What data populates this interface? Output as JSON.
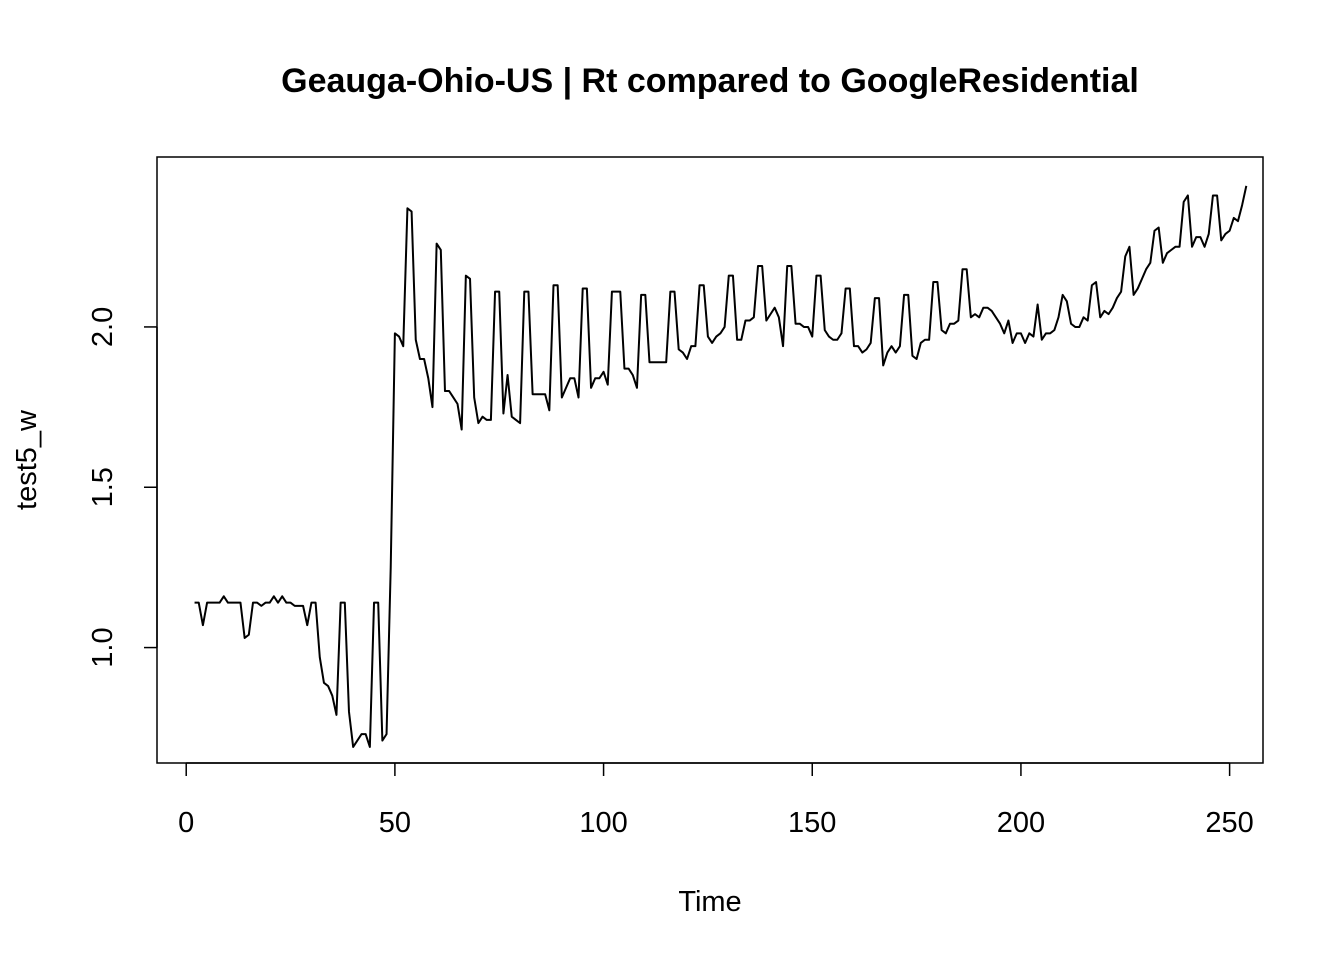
{
  "chart_data": {
    "type": "line",
    "title": "Geauga-Ohio-US | Rt compared to GoogleResidential",
    "xlabel": "Time",
    "ylabel": "test5_w",
    "xlim": [
      -7,
      258
    ],
    "ylim": [
      0.64,
      2.53
    ],
    "x_ticks": [
      0,
      50,
      100,
      150,
      200,
      250
    ],
    "y_ticks": [
      1.0,
      1.5,
      2.0
    ],
    "x_tick_labels": [
      "0",
      "50",
      "100",
      "150",
      "200",
      "250"
    ],
    "y_tick_labels": [
      "1.0",
      "1.5",
      "2.0"
    ],
    "grid": false,
    "legend": "none",
    "line_color": "#000000",
    "series": [
      {
        "x_start": 2,
        "values": [
          1.14,
          1.14,
          1.07,
          1.14,
          1.14,
          1.14,
          1.14,
          1.16,
          1.14,
          1.14,
          1.14,
          1.14,
          1.03,
          1.04,
          1.14,
          1.14,
          1.13,
          1.14,
          1.14,
          1.16,
          1.14,
          1.16,
          1.14,
          1.14,
          1.13,
          1.13,
          1.13,
          1.07,
          1.14,
          1.14,
          0.97,
          0.89,
          0.88,
          0.85,
          0.79,
          1.14,
          1.14,
          0.8,
          0.69,
          0.71,
          0.73,
          0.73,
          0.69,
          1.14,
          1.14,
          0.71,
          0.73,
          1.25,
          1.98,
          1.97,
          1.94,
          2.37,
          2.36,
          1.96,
          1.9,
          1.9,
          1.84,
          1.75,
          2.26,
          2.24,
          1.8,
          1.8,
          1.78,
          1.76,
          1.68,
          2.16,
          2.15,
          1.78,
          1.7,
          1.72,
          1.71,
          1.71,
          2.11,
          2.11,
          1.73,
          1.85,
          1.72,
          1.71,
          1.7,
          2.11,
          2.11,
          1.79,
          1.79,
          1.79,
          1.79,
          1.74,
          2.13,
          2.13,
          1.78,
          1.81,
          1.84,
          1.84,
          1.78,
          2.12,
          2.12,
          1.81,
          1.84,
          1.84,
          1.86,
          1.82,
          2.11,
          2.11,
          2.11,
          1.87,
          1.87,
          1.85,
          1.81,
          2.1,
          2.1,
          1.89,
          1.89,
          1.89,
          1.89,
          1.89,
          2.11,
          2.11,
          1.93,
          1.92,
          1.9,
          1.94,
          1.94,
          2.13,
          2.13,
          1.97,
          1.95,
          1.97,
          1.98,
          2.0,
          2.16,
          2.16,
          1.96,
          1.96,
          2.02,
          2.02,
          2.03,
          2.19,
          2.19,
          2.02,
          2.04,
          2.06,
          2.03,
          1.94,
          2.19,
          2.19,
          2.01,
          2.01,
          2.0,
          2.0,
          1.97,
          2.16,
          2.16,
          1.99,
          1.97,
          1.96,
          1.96,
          1.98,
          2.12,
          2.12,
          1.94,
          1.94,
          1.92,
          1.93,
          1.95,
          2.09,
          2.09,
          1.88,
          1.92,
          1.94,
          1.92,
          1.94,
          2.1,
          2.1,
          1.91,
          1.9,
          1.95,
          1.96,
          1.96,
          2.14,
          2.14,
          1.99,
          1.98,
          2.01,
          2.01,
          2.02,
          2.18,
          2.18,
          2.03,
          2.04,
          2.03,
          2.06,
          2.06,
          2.05,
          2.03,
          2.01,
          1.98,
          2.02,
          1.95,
          1.98,
          1.98,
          1.95,
          1.98,
          1.97,
          2.07,
          1.96,
          1.98,
          1.98,
          1.99,
          2.03,
          2.1,
          2.08,
          2.01,
          2.0,
          2.0,
          2.03,
          2.02,
          2.13,
          2.14,
          2.03,
          2.05,
          2.04,
          2.06,
          2.09,
          2.11,
          2.22,
          2.25,
          2.1,
          2.12,
          2.15,
          2.18,
          2.2,
          2.3,
          2.31,
          2.2,
          2.23,
          2.24,
          2.25,
          2.25,
          2.39,
          2.41,
          2.25,
          2.28,
          2.28,
          2.25,
          2.29,
          2.41,
          2.41,
          2.27,
          2.29,
          2.3,
          2.34,
          2.33,
          2.38,
          2.44
        ]
      }
    ]
  }
}
